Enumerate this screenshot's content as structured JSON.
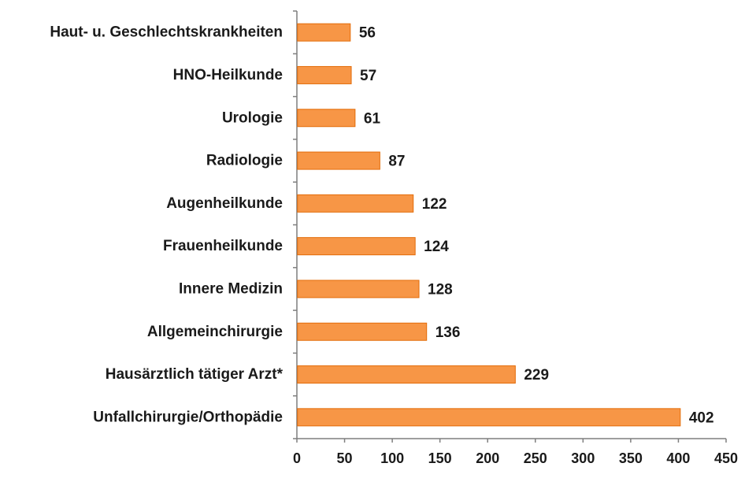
{
  "chart_data": {
    "type": "bar",
    "orientation": "horizontal",
    "categories": [
      "Haut- u. Geschlechtskrankheiten",
      "HNO-Heilkunde",
      "Urologie",
      "Radiologie",
      "Augenheilkunde",
      "Frauenheilkunde",
      "Innere Medizin",
      "Allgemeinchirurgie",
      "Hausärztlich tätiger Arzt*",
      "Unfallchirurgie/Orthopädie"
    ],
    "values": [
      56,
      57,
      61,
      87,
      122,
      124,
      128,
      136,
      229,
      402
    ],
    "value_labels": [
      "56",
      "57",
      "61",
      "87",
      "122",
      "124",
      "128",
      "136",
      "229",
      "402"
    ],
    "xlim": [
      0,
      450
    ],
    "xticks": [
      0,
      50,
      100,
      150,
      200,
      250,
      300,
      350,
      400,
      450
    ],
    "tick_labels": [
      "0",
      "50",
      "100",
      "150",
      "200",
      "250",
      "300",
      "350",
      "400",
      "450"
    ],
    "grid": false,
    "legend": "none",
    "bar_color": "#F79646",
    "bar_edge_color": "#E36C09"
  }
}
